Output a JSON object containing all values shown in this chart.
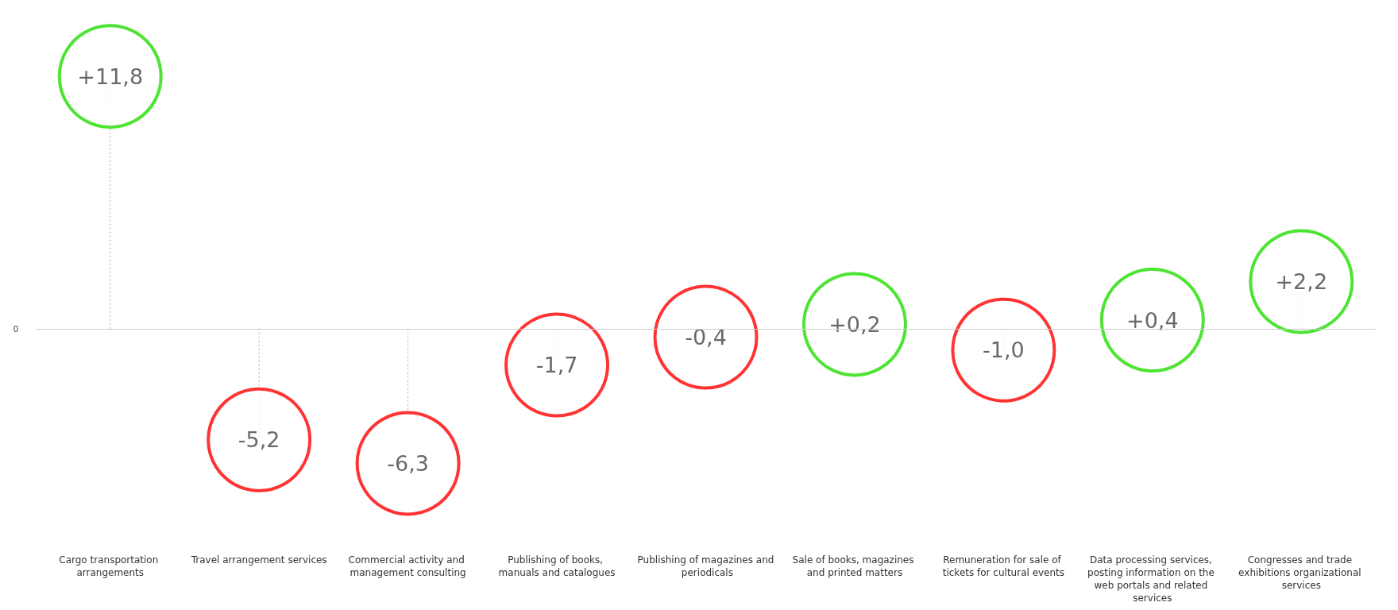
{
  "chart_data": {
    "type": "lollipop",
    "categories": [
      "Cargo transportation arrangements",
      "Travel arrangement services",
      "Commercial activity and management consulting",
      "Publishing of books, manuals and catalogues",
      "Publishing of magazines and periodicals",
      "Sale of books, magazines and printed matters",
      "Remuneration for sale of tickets for cultural events",
      "Data processing services, posting information on the web portals and related services",
      "Congresses and trade exhibitions organizational services"
    ],
    "values": [
      11.8,
      -5.2,
      -6.3,
      -1.7,
      -0.4,
      0.2,
      -1.0,
      0.4,
      2.2
    ],
    "value_labels": [
      "+11,8",
      "-5,2",
      "-6,3",
      "-1,7",
      "-0,4",
      "+0,2",
      "-1,0",
      "+0,4",
      "+2,2"
    ],
    "colors": [
      "#22dd00",
      "#ff0000",
      "#ff0000",
      "#ff0000",
      "#ff0000",
      "#22dd00",
      "#ff0000",
      "#22dd00",
      "#22dd00"
    ],
    "ref_lines": [
      {
        "axis": "y",
        "value": 0,
        "label": "0",
        "color": "#cccccc"
      }
    ],
    "marker": "circle",
    "line_style": "dotted"
  }
}
